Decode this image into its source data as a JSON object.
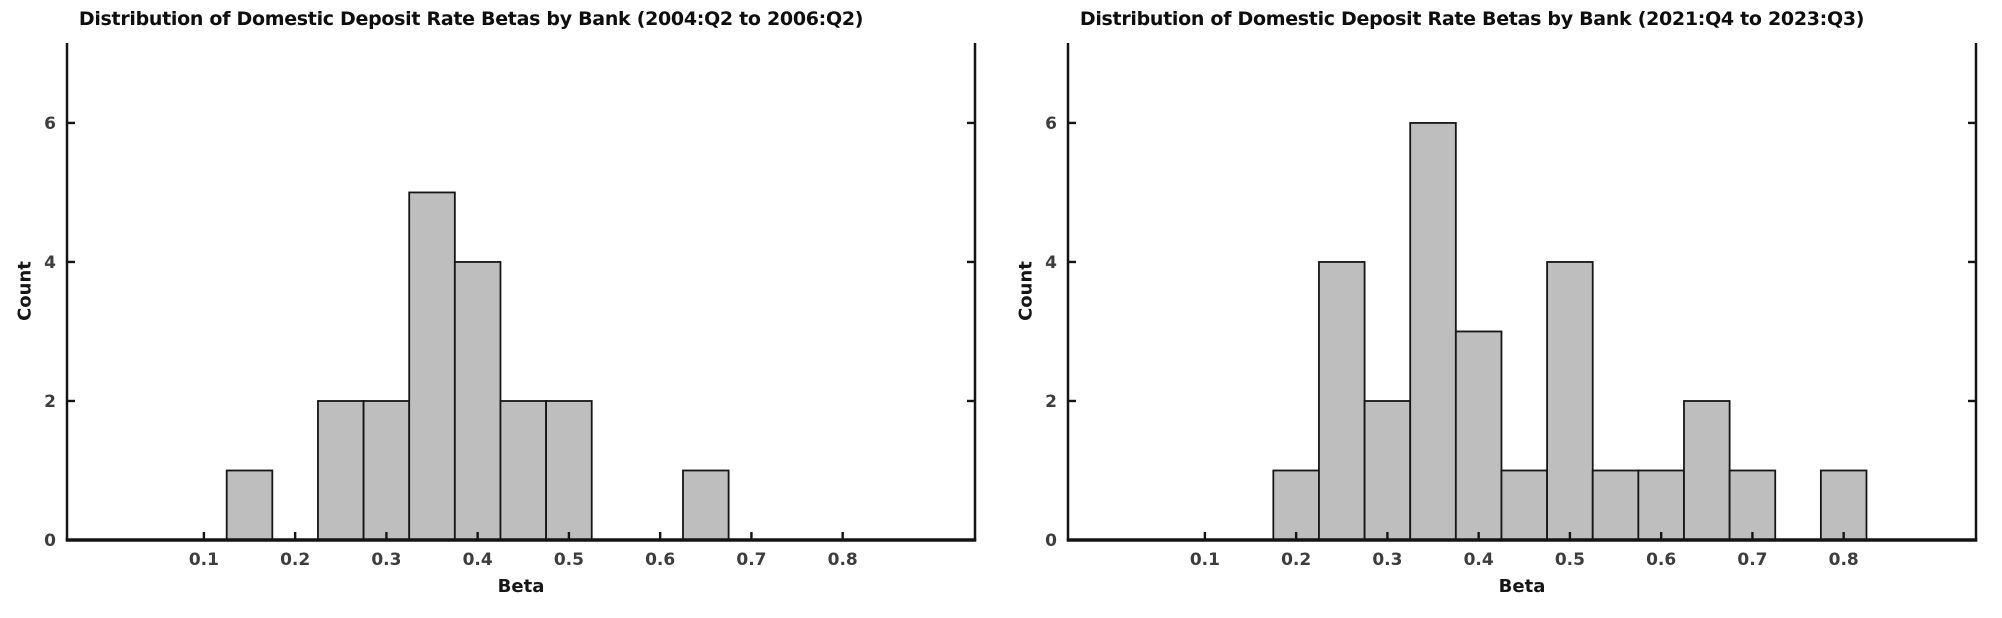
{
  "figure": {
    "background": "#ffffff"
  },
  "chart_data": [
    {
      "type": "bar",
      "subtype": "histogram",
      "title": "Distribution of Domestic Deposit Rate Betas by Bank (2004:Q2 to 2006:Q2)",
      "xlabel": "Beta",
      "ylabel": "Count",
      "bin_width": 0.05,
      "bins": [
        {
          "center": 0.15,
          "count": 1
        },
        {
          "center": 0.25,
          "count": 2
        },
        {
          "center": 0.3,
          "count": 2
        },
        {
          "center": 0.35,
          "count": 5
        },
        {
          "center": 0.4,
          "count": 4
        },
        {
          "center": 0.45,
          "count": 2
        },
        {
          "center": 0.5,
          "count": 2
        },
        {
          "center": 0.65,
          "count": 1
        }
      ],
      "xlim": [
        -0.05,
        0.945
      ],
      "ylim": [
        0,
        7.15
      ],
      "xticks": [
        0.1,
        0.2,
        0.3,
        0.4,
        0.5,
        0.6,
        0.7,
        0.8
      ],
      "xtick_labels": [
        "0.1",
        "0.2",
        "0.3",
        "0.4",
        "0.5",
        "0.6",
        "0.7",
        "0.8"
      ],
      "yticks": [
        0,
        2,
        4,
        6
      ],
      "ytick_labels": [
        "0",
        "2",
        "4",
        "6"
      ],
      "grid": false,
      "legend": "none",
      "bar_fill": "#bebebe",
      "bar_edge": "#161616",
      "axis_color": "#141414",
      "tick_label_color": "#3d3d3d"
    },
    {
      "type": "bar",
      "subtype": "histogram",
      "title": "Distribution of Domestic Deposit Rate Betas by Bank (2021:Q4 to 2023:Q3)",
      "xlabel": "Beta",
      "ylabel": "Count",
      "bin_width": 0.05,
      "bins": [
        {
          "center": 0.2,
          "count": 1
        },
        {
          "center": 0.25,
          "count": 4
        },
        {
          "center": 0.3,
          "count": 2
        },
        {
          "center": 0.35,
          "count": 6
        },
        {
          "center": 0.4,
          "count": 3
        },
        {
          "center": 0.45,
          "count": 1
        },
        {
          "center": 0.5,
          "count": 4
        },
        {
          "center": 0.55,
          "count": 1
        },
        {
          "center": 0.6,
          "count": 1
        },
        {
          "center": 0.65,
          "count": 2
        },
        {
          "center": 0.7,
          "count": 1
        },
        {
          "center": 0.8,
          "count": 1
        }
      ],
      "xlim": [
        -0.05,
        0.945
      ],
      "ylim": [
        0,
        7.15
      ],
      "xticks": [
        0.1,
        0.2,
        0.3,
        0.4,
        0.5,
        0.6,
        0.7,
        0.8
      ],
      "xtick_labels": [
        "0.1",
        "0.2",
        "0.3",
        "0.4",
        "0.5",
        "0.6",
        "0.7",
        "0.8"
      ],
      "yticks": [
        0,
        2,
        4,
        6
      ],
      "ytick_labels": [
        "0",
        "2",
        "4",
        "6"
      ],
      "grid": false,
      "legend": "none",
      "bar_fill": "#bebebe",
      "bar_edge": "#161616",
      "axis_color": "#141414",
      "tick_label_color": "#3d3d3d"
    }
  ]
}
